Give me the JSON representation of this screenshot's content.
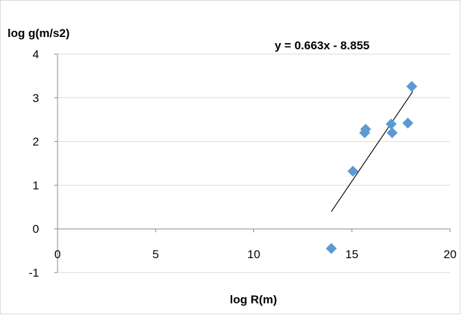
{
  "chart_data": {
    "type": "scatter",
    "xlabel": "log R(m)",
    "ylabel": "log g(m/s2)",
    "xlim": [
      0,
      20
    ],
    "ylim": [
      -1,
      4
    ],
    "xticks": [
      0,
      5,
      10,
      15,
      20
    ],
    "yticks": [
      -1,
      0,
      1,
      2,
      3,
      4
    ],
    "grid": "horizontal",
    "marker": "diamond",
    "marker_color": "#5b9bd5",
    "trendline": {
      "type": "linear",
      "slope": 0.663,
      "intercept": -8.855,
      "x_range": [
        13.95,
        18.1
      ],
      "label": "y = 0.663x - 8.855",
      "color": "#000000"
    },
    "points": [
      {
        "x": 13.95,
        "y": -0.45
      },
      {
        "x": 15.05,
        "y": 1.32
      },
      {
        "x": 15.65,
        "y": 2.2
      },
      {
        "x": 15.7,
        "y": 2.28
      },
      {
        "x": 17.0,
        "y": 2.4
      },
      {
        "x": 17.05,
        "y": 2.2
      },
      {
        "x": 17.85,
        "y": 2.42
      },
      {
        "x": 18.05,
        "y": 3.26
      }
    ]
  }
}
